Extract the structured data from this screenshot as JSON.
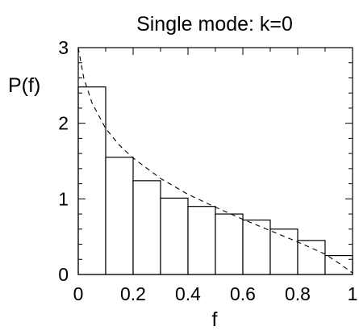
{
  "chart_data": {
    "type": "bar",
    "title": "Single mode: k=0",
    "xlabel": "f",
    "ylabel": "P(f)",
    "xlim": [
      0,
      1
    ],
    "ylim": [
      0,
      3
    ],
    "grid": false,
    "x_ticks": [
      {
        "value": 0,
        "label": "0"
      },
      {
        "value": 0.2,
        "label": "0.2"
      },
      {
        "value": 0.4,
        "label": "0.4"
      },
      {
        "value": 0.6,
        "label": "0.6"
      },
      {
        "value": 0.8,
        "label": "0.8"
      },
      {
        "value": 1,
        "label": "1"
      }
    ],
    "y_ticks": [
      {
        "value": 0,
        "label": "0"
      },
      {
        "value": 1,
        "label": "1"
      },
      {
        "value": 2,
        "label": "2"
      },
      {
        "value": 3,
        "label": "3"
      }
    ],
    "bin_edges": [
      0,
      0.1,
      0.2,
      0.3,
      0.4,
      0.5,
      0.6,
      0.7,
      0.8,
      0.9,
      1.0
    ],
    "values": [
      2.48,
      1.55,
      1.24,
      1.01,
      0.9,
      0.8,
      0.72,
      0.6,
      0.45,
      0.25
    ],
    "curve": {
      "style": "dashed",
      "x": [
        0.0,
        0.02,
        0.05,
        0.1,
        0.15,
        0.2,
        0.3,
        0.4,
        0.5,
        0.6,
        0.7,
        0.8,
        0.9,
        0.95,
        1.0
      ],
      "y": [
        3.0,
        2.6,
        2.27,
        1.93,
        1.71,
        1.54,
        1.27,
        1.06,
        0.89,
        0.73,
        0.58,
        0.43,
        0.27,
        0.15,
        0.02
      ]
    }
  }
}
